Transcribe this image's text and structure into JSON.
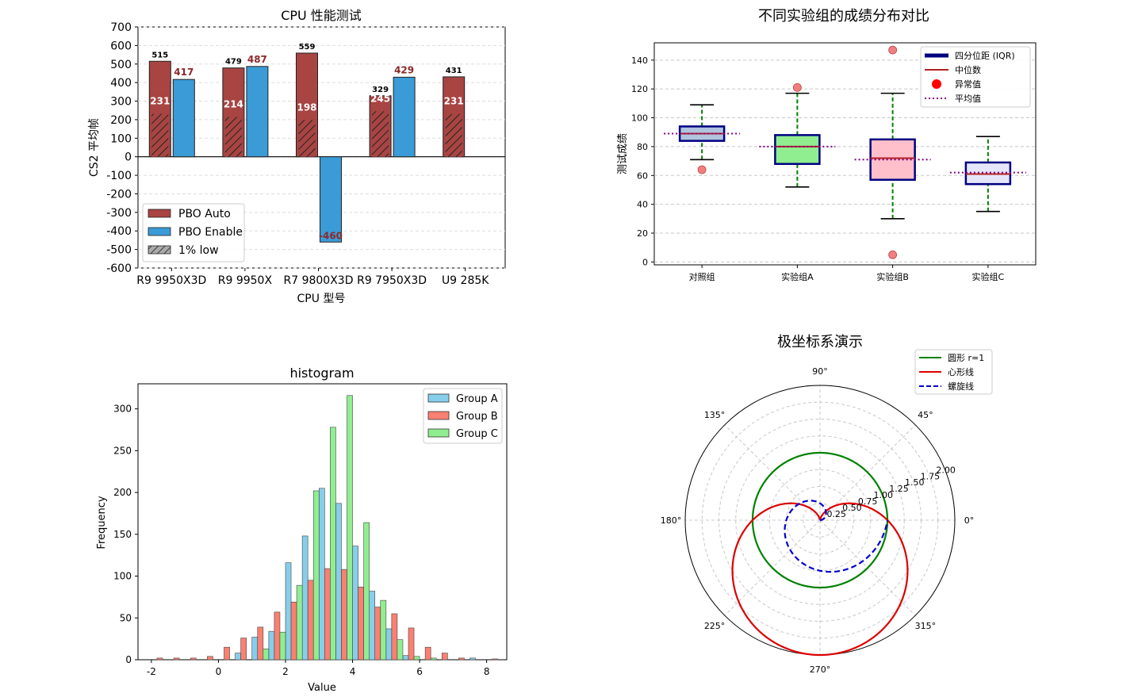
{
  "chart_data": [
    {
      "type": "bar",
      "title": "CPU 性能测试",
      "xlabel": "CPU 型号",
      "ylabel": "CS2 平均帧",
      "ylim": [
        -600,
        700
      ],
      "yticks": [
        "700",
        "600",
        "500",
        "400",
        "300",
        "200",
        "100",
        "0",
        "-100",
        "-200",
        "-300",
        "-400",
        "-500",
        "-600"
      ],
      "categories": [
        "R9 9950X3D",
        "R9 9950X",
        "R7 9800X3D",
        "R9 7950X3D",
        "U9 285K"
      ],
      "series": [
        {
          "name": "PBO Auto",
          "values": [
            515,
            479,
            559,
            329,
            431
          ],
          "color": "#a84442"
        },
        {
          "name": "PBO Enable",
          "values": [
            417,
            487,
            -460,
            429,
            null
          ],
          "color": "#3a9bd6"
        },
        {
          "name": "1% low",
          "values": [
            231,
            214,
            198,
            245,
            231
          ],
          "color": "#a84442"
        }
      ],
      "bar_labels_auto": [
        "515",
        "479",
        "559",
        "329",
        "431"
      ],
      "bar_labels_enable": [
        "417",
        "487",
        "-460",
        "429",
        ""
      ],
      "bar_labels_low": [
        "231",
        "214",
        "198",
        "245",
        "231"
      ],
      "legend": [
        "PBO Auto",
        "PBO Enable",
        "1% low"
      ],
      "legend_position": "lower-left",
      "grid": true
    },
    {
      "type": "box",
      "title": "不同实验组的成绩分布对比",
      "xlabel": "",
      "ylabel": "测试成绩",
      "ylim": [
        -2,
        152
      ],
      "yticks": [
        "0",
        "20",
        "40",
        "60",
        "80",
        "100",
        "120",
        "140"
      ],
      "categories": [
        "对照组",
        "实验组A",
        "实验组B",
        "实验组C"
      ],
      "boxes": [
        {
          "whislo": 71,
          "q1": 84,
          "med": 89,
          "q3": 94,
          "whishi": 109,
          "mean": 89,
          "fliers": [
            64
          ],
          "color": "#b0c4de"
        },
        {
          "whislo": 52,
          "q1": 68,
          "med": 80,
          "q3": 88,
          "whishi": 117,
          "mean": 80,
          "fliers": [
            121
          ],
          "color": "#90ee90"
        },
        {
          "whislo": 30,
          "q1": 57,
          "med": 72,
          "q3": 85,
          "whishi": 117,
          "mean": 71,
          "fliers": [
            147,
            5
          ],
          "color": "#ffc0cb"
        },
        {
          "whislo": 35,
          "q1": 54,
          "med": 61,
          "q3": 69,
          "whishi": 87,
          "mean": 62,
          "fliers": [],
          "color": "#e6e6fa"
        }
      ],
      "legend": [
        "四分位距 (IQR)",
        "中位数",
        "异常值",
        "平均值"
      ],
      "legend_position": "upper-right",
      "grid": true
    },
    {
      "type": "histogram",
      "title": "histogram",
      "xlabel": "Value",
      "ylabel": "Frequency",
      "xlim": [
        -2.4,
        8.6
      ],
      "ylim": [
        0,
        330
      ],
      "xticks": [
        "-2",
        "0",
        "2",
        "4",
        "6",
        "8"
      ],
      "yticks": [
        "0",
        "50",
        "100",
        "150",
        "200",
        "250",
        "300"
      ],
      "bin_width": 0.5,
      "series": [
        {
          "name": "Group A",
          "color": "#87ceeb",
          "bins": [
            [
              0.5,
              8
            ],
            [
              1.0,
              27
            ],
            [
              1.5,
              34
            ],
            [
              2.0,
              116
            ],
            [
              2.5,
              148
            ],
            [
              3.0,
              205
            ],
            [
              3.5,
              187
            ],
            [
              4.0,
              136
            ],
            [
              4.5,
              82
            ],
            [
              5.0,
              37
            ],
            [
              5.5,
              5
            ],
            [
              7.5,
              2
            ]
          ]
        },
        {
          "name": "Group B",
          "color": "#fa8072",
          "bins": [
            [
              -2.0,
              2
            ],
            [
              -1.5,
              2
            ],
            [
              -1.0,
              2
            ],
            [
              -0.5,
              4
            ],
            [
              0.0,
              15
            ],
            [
              0.5,
              26
            ],
            [
              1.0,
              39
            ],
            [
              1.5,
              57
            ],
            [
              2.0,
              69
            ],
            [
              2.5,
              95
            ],
            [
              3.0,
              109
            ],
            [
              3.5,
              108
            ],
            [
              4.0,
              87
            ],
            [
              4.5,
              63
            ],
            [
              5.0,
              55
            ],
            [
              5.5,
              38
            ],
            [
              6.0,
              15
            ],
            [
              6.5,
              8
            ],
            [
              7.0,
              2
            ],
            [
              8.0,
              1
            ]
          ]
        },
        {
          "name": "Group C",
          "color": "#90ee90",
          "bins": [
            [
              1.0,
              13
            ],
            [
              1.5,
              33
            ],
            [
              2.0,
              89
            ],
            [
              2.5,
              202
            ],
            [
              3.0,
              278
            ],
            [
              3.5,
              316
            ],
            [
              4.0,
              164
            ],
            [
              4.5,
              71
            ],
            [
              5.0,
              24
            ],
            [
              5.5,
              4
            ],
            [
              6.0,
              2
            ]
          ]
        }
      ],
      "legend": [
        "Group A",
        "Group B",
        "Group C"
      ],
      "legend_position": "upper-right"
    },
    {
      "type": "polar",
      "title": "极坐标系演示",
      "rmax": 2.0,
      "rticks": [
        "0.25",
        "0.50",
        "0.75",
        "1.00",
        "1.25",
        "1.50",
        "1.75",
        "2.00"
      ],
      "angle_ticks": [
        "0°",
        "45°",
        "90°",
        "135°",
        "180°",
        "225°",
        "270°",
        "315°"
      ],
      "series": [
        {
          "name": "圆形 r=1",
          "formula": "r = 1",
          "color": "#008000",
          "style": "solid"
        },
        {
          "name": "心形线",
          "formula": "r = 1 - sin(θ)",
          "color": "#dd0000",
          "style": "solid"
        },
        {
          "name": "螺旋线",
          "formula": "r = θ / (2π)",
          "color": "#0000cc",
          "style": "dashed"
        }
      ],
      "legend": [
        "圆形 r=1",
        "心形线",
        "螺旋线"
      ],
      "legend_position": "upper-right"
    }
  ]
}
